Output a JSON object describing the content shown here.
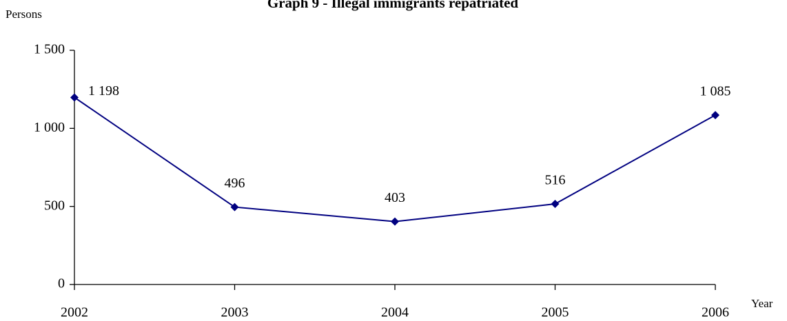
{
  "chart_data": {
    "type": "line",
    "title": "Graph 9 - Illegal immigrants repatriated",
    "y_label": "Persons",
    "x_label": "Year",
    "x": [
      2002,
      2003,
      2004,
      2005,
      2006
    ],
    "values": [
      1198,
      496,
      403,
      516,
      1085
    ],
    "value_labels": [
      "1 198",
      "496",
      "403",
      "516",
      "1 085"
    ],
    "color": "#000080",
    "xlim": [
      2002,
      2006
    ],
    "xticks": [
      2002,
      2003,
      2004,
      2005,
      2006
    ],
    "ylim": [
      0,
      1500
    ],
    "yticks": [
      0,
      {
        "value": 500,
        "label": "500"
      },
      {
        "value": 1000,
        "label": "1 000"
      },
      {
        "value": 1500,
        "label": "1 500"
      }
    ],
    "grid": false
  }
}
